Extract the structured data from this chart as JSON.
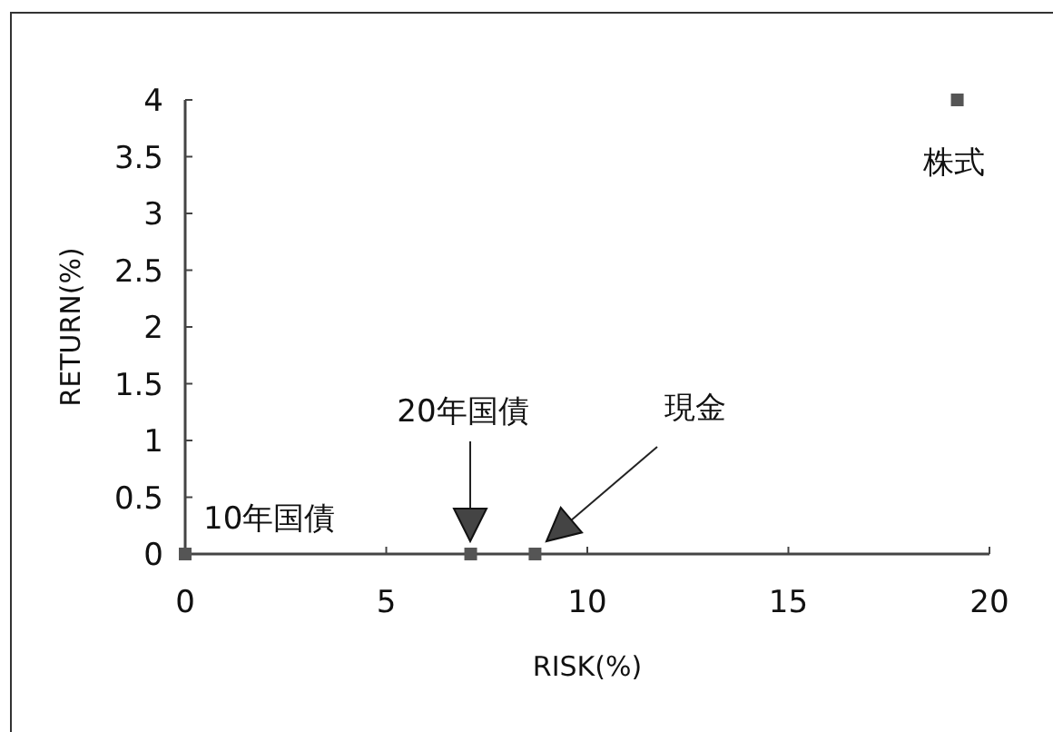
{
  "chart_data": {
    "type": "scatter",
    "xlabel": "RISK(%)",
    "ylabel": "RETURN(%)",
    "series": [
      {
        "color": "#555555",
        "x": [
          0,
          7.1,
          8.7,
          19.2
        ],
        "values": [
          0,
          0,
          0,
          4.0
        ]
      }
    ],
    "marker": "square",
    "xlim": [
      0,
      20
    ],
    "xticks": [
      0,
      5,
      10,
      15,
      20
    ],
    "ylim": [
      0,
      4
    ],
    "yticks": [
      0,
      0.5,
      1,
      1.5,
      2,
      2.5,
      3,
      3.5,
      4
    ],
    "grid": false,
    "annotations": [
      {
        "text": "10年国債",
        "x": 0,
        "y": 0
      },
      "20年国債",
      "現金",
      {
        "text": "株式",
        "x": 19.2,
        "y": 4.0
      }
    ]
  }
}
